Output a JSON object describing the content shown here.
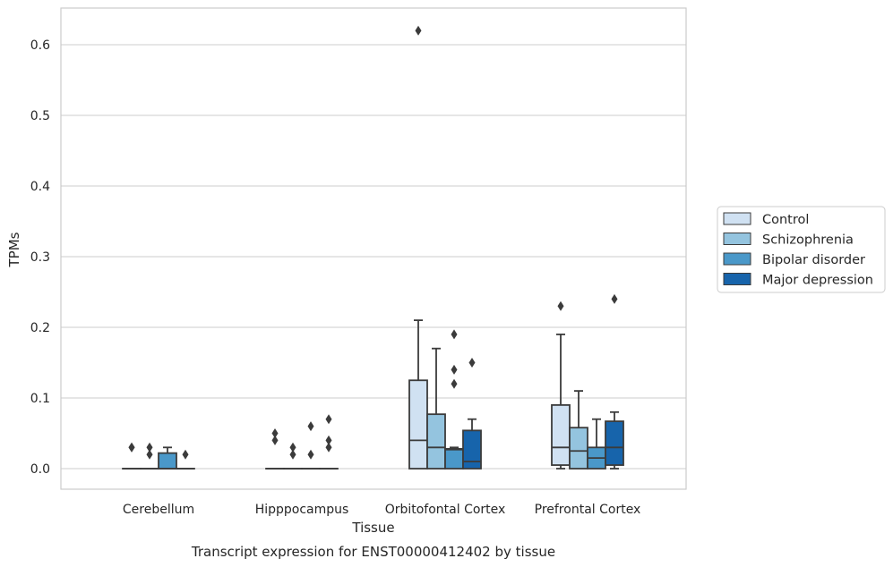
{
  "chart_data": {
    "type": "boxplot",
    "caption": "Transcript expression for ENST00000412402 by tissue",
    "xlabel": "Tissue",
    "ylabel": "TPMs",
    "ylim": [
      -0.03,
      0.655
    ],
    "yticks": [
      "0.0",
      "0.1",
      "0.2",
      "0.3",
      "0.4",
      "0.5",
      "0.6"
    ],
    "grid": "horizontal",
    "legend_position": "right",
    "categories": [
      "Cerebellum",
      "Hipppocampus",
      "Orbitofontal Cortex",
      "Prefrontal Cortex"
    ],
    "series": [
      {
        "name": "Control",
        "color": "#d0e1f2",
        "boxes": [
          {
            "whislo": 0,
            "q1": 0,
            "med": 0,
            "q3": 0,
            "whishi": 0,
            "fliers": [
              0.03,
              0.03
            ]
          },
          {
            "whislo": 0,
            "q1": 0,
            "med": 0,
            "q3": 0,
            "whishi": 0,
            "fliers": [
              0.04,
              0.05
            ]
          },
          {
            "whislo": 0,
            "q1": 0,
            "med": 0.04,
            "q3": 0.125,
            "whishi": 0.21,
            "fliers": [
              0.62
            ]
          },
          {
            "whislo": 0,
            "q1": 0.005,
            "med": 0.03,
            "q3": 0.09,
            "whishi": 0.19,
            "fliers": [
              0.23
            ]
          }
        ]
      },
      {
        "name": "Schizophrenia",
        "color": "#94c4df",
        "boxes": [
          {
            "whislo": 0,
            "q1": 0,
            "med": 0,
            "q3": 0,
            "whishi": 0,
            "fliers": [
              0.02,
              0.03
            ]
          },
          {
            "whislo": 0,
            "q1": 0,
            "med": 0,
            "q3": 0,
            "whishi": 0,
            "fliers": [
              0.02,
              0.03
            ]
          },
          {
            "whislo": 0,
            "q1": 0,
            "med": 0.03,
            "q3": 0.077,
            "whishi": 0.17,
            "fliers": []
          },
          {
            "whislo": 0,
            "q1": 0,
            "med": 0.025,
            "q3": 0.058,
            "whishi": 0.11,
            "fliers": []
          }
        ]
      },
      {
        "name": "Bipolar disorder",
        "color": "#4a98c9",
        "boxes": [
          {
            "whislo": 0,
            "q1": 0,
            "med": 0,
            "q3": 0.022,
            "whishi": 0.03,
            "fliers": []
          },
          {
            "whislo": 0,
            "q1": 0,
            "med": 0,
            "q3": 0,
            "whishi": 0,
            "fliers": [
              0.02,
              0.06
            ]
          },
          {
            "whislo": 0,
            "q1": 0,
            "med": 0.027,
            "q3": 0.028,
            "whishi": 0.03,
            "fliers": [
              0.12,
              0.14,
              0.19
            ]
          },
          {
            "whislo": 0,
            "q1": 0,
            "med": 0.015,
            "q3": 0.03,
            "whishi": 0.07,
            "fliers": []
          }
        ]
      },
      {
        "name": "Major depression",
        "color": "#1764ab",
        "boxes": [
          {
            "whislo": 0,
            "q1": 0,
            "med": 0,
            "q3": 0,
            "whishi": 0,
            "fliers": [
              0.02
            ]
          },
          {
            "whislo": 0,
            "q1": 0,
            "med": 0,
            "q3": 0,
            "whishi": 0,
            "fliers": [
              0.03,
              0.04,
              0.07
            ]
          },
          {
            "whislo": 0,
            "q1": 0,
            "med": 0.01,
            "q3": 0.054,
            "whishi": 0.07,
            "fliers": [
              0.15
            ]
          },
          {
            "whislo": 0,
            "q1": 0.005,
            "med": 0.03,
            "q3": 0.067,
            "whishi": 0.08,
            "fliers": [
              0.24
            ]
          }
        ]
      }
    ]
  }
}
